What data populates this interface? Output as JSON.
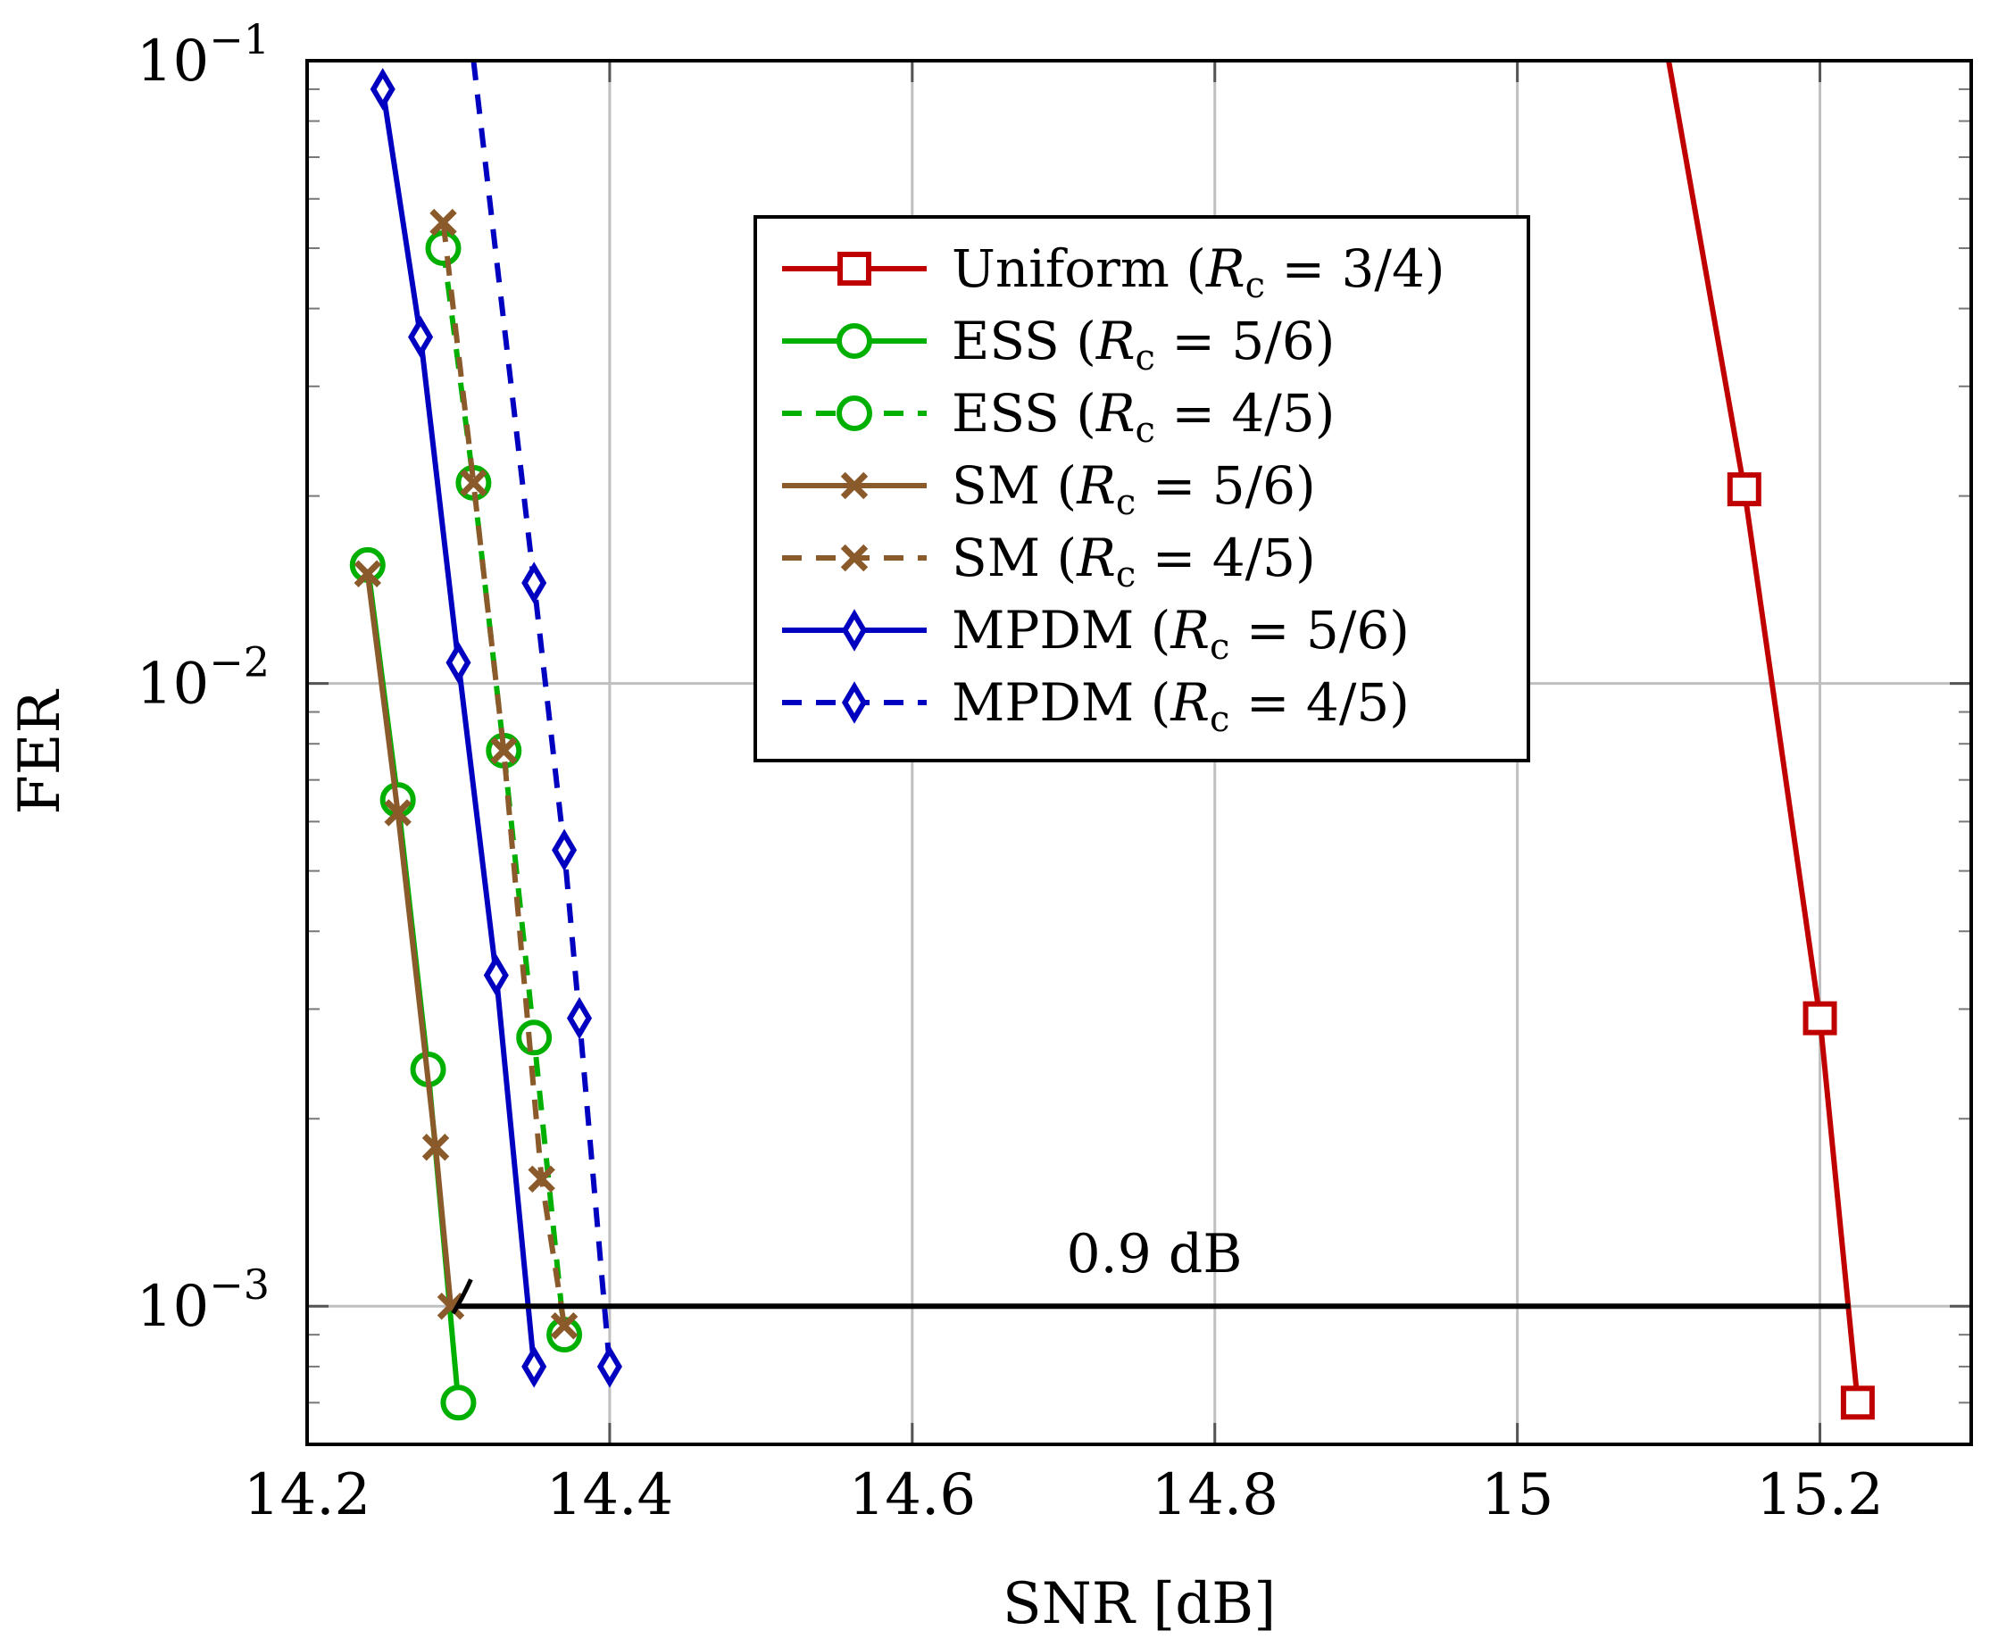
{
  "chart_data": {
    "type": "line",
    "title": "",
    "xlabel": "SNR [dB]",
    "ylabel": "FER",
    "xlim": [
      14.2,
      15.3
    ],
    "ylim": [
      0.0006,
      0.1
    ],
    "yscale": "log",
    "grid": true,
    "x_ticks": [
      14.2,
      14.4,
      14.6,
      14.8,
      15.0,
      15.2
    ],
    "x_tick_labels": [
      "14.2",
      "14.4",
      "14.6",
      "14.8",
      "15",
      "15.2"
    ],
    "y_ticks": [
      0.1,
      0.01,
      0.001
    ],
    "y_tick_labels": [
      {
        "base": "10",
        "exp": "−1"
      },
      {
        "base": "10",
        "exp": "−2"
      },
      {
        "base": "10",
        "exp": "−3"
      }
    ],
    "legend_position": "upper-center",
    "series": [
      {
        "name": "Uniform",
        "label_prefix": "Uniform (",
        "rate": "3/4",
        "color": "#c00000",
        "dash": "solid",
        "marker": "square",
        "x": [
          15.1,
          15.15,
          15.2,
          15.225
        ],
        "y": [
          0.1,
          0.0205,
          0.0029,
          0.0007
        ],
        "markers_on": [
          false,
          true,
          true,
          true
        ]
      },
      {
        "name": "ESS 5/6",
        "label_prefix": "ESS (",
        "rate": "5/6",
        "color": "#00b000",
        "dash": "solid",
        "marker": "circle",
        "x": [
          14.24,
          14.26,
          14.28,
          14.3
        ],
        "y": [
          0.0155,
          0.0065,
          0.0024,
          0.0007
        ],
        "markers_on": [
          true,
          true,
          true,
          true
        ]
      },
      {
        "name": "ESS 4/5",
        "label_prefix": "ESS (",
        "rate": "4/5",
        "color": "#00b000",
        "dash": "dashed",
        "marker": "circle",
        "x": [
          14.29,
          14.31,
          14.33,
          14.35,
          14.37
        ],
        "y": [
          0.05,
          0.021,
          0.0078,
          0.0027,
          0.0009
        ],
        "markers_on": [
          true,
          true,
          true,
          true,
          true
        ]
      },
      {
        "name": "SM 5/6",
        "label_prefix": "SM (",
        "rate": "5/6",
        "color": "#8b5a2b",
        "dash": "solid",
        "marker": "cross",
        "x": [
          14.24,
          14.26,
          14.285,
          14.295
        ],
        "y": [
          0.015,
          0.0062,
          0.0018,
          0.001
        ],
        "markers_on": [
          true,
          true,
          true,
          true
        ]
      },
      {
        "name": "SM 4/5",
        "label_prefix": "SM (",
        "rate": "4/5",
        "color": "#8b5a2b",
        "dash": "dashed",
        "marker": "cross",
        "x": [
          14.29,
          14.31,
          14.33,
          14.355,
          14.37
        ],
        "y": [
          0.055,
          0.021,
          0.0078,
          0.0016,
          0.00093
        ],
        "markers_on": [
          true,
          true,
          true,
          true,
          true
        ]
      },
      {
        "name": "MPDM 5/6",
        "label_prefix": "MPDM (",
        "rate": "5/6",
        "color": "#0000c0",
        "dash": "solid",
        "marker": "diamond",
        "x": [
          14.25,
          14.275,
          14.3,
          14.325,
          14.35
        ],
        "y": [
          0.09,
          0.036,
          0.0108,
          0.0034,
          0.0008
        ],
        "markers_on": [
          true,
          true,
          true,
          true,
          true
        ]
      },
      {
        "name": "MPDM 4/5",
        "label_prefix": "MPDM (",
        "rate": "4/5",
        "color": "#0000c0",
        "dash": "dashed",
        "marker": "diamond",
        "x": [
          14.31,
          14.35,
          14.37,
          14.38,
          14.4
        ],
        "y": [
          0.1,
          0.0145,
          0.0054,
          0.0029,
          0.0008
        ],
        "markers_on": [
          false,
          true,
          true,
          true,
          true
        ]
      }
    ],
    "annotations": [
      {
        "text": "0.9 dB",
        "x_from": 14.3,
        "x_to": 15.22,
        "y": 0.001
      }
    ]
  }
}
